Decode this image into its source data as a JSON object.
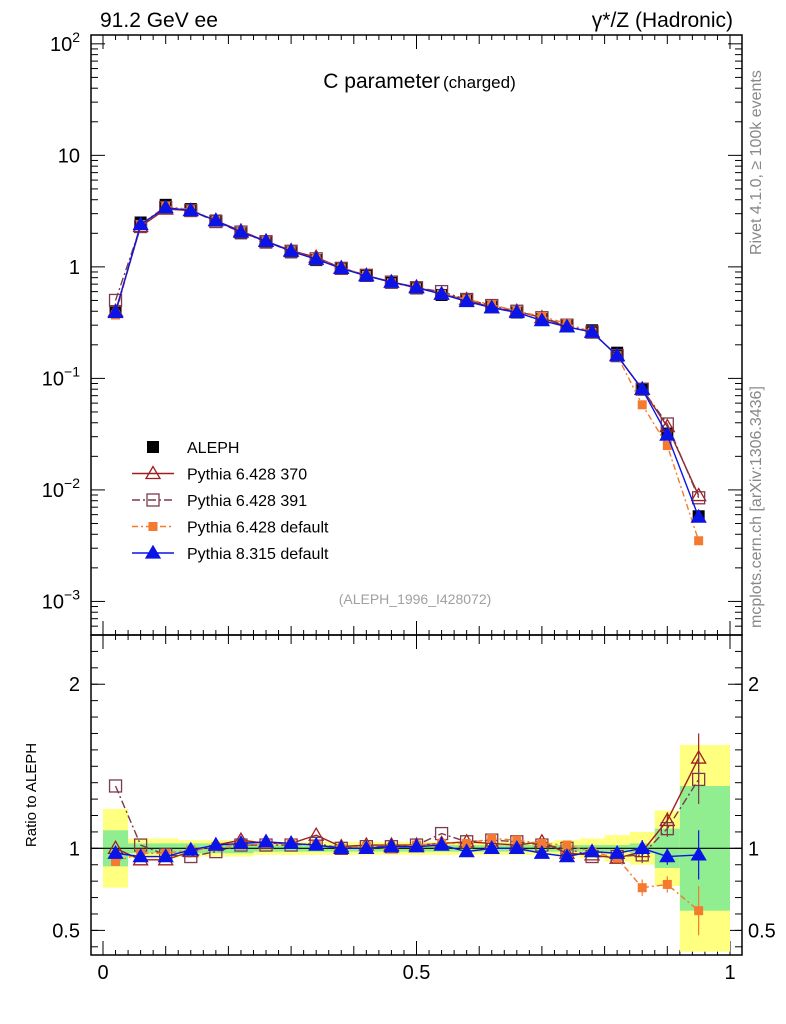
{
  "header": {
    "left_title": "91.2 GeV ee",
    "right_title": "γ*/Z (Hadronic)"
  },
  "side_labels": {
    "rivet": "Rivet 4.1.0, ≥ 100k events",
    "mcplots": "mcplots.cern.ch [arXiv:1306.3436]"
  },
  "chart_data": {
    "type": "line",
    "title_main": "C parameter",
    "title_sub": "(charged)",
    "analysis_label": "(ALEPH_1996_I428072)",
    "ratio_ylabel": "Ratio to ALEPH",
    "xlim": [
      0,
      1
    ],
    "ylim_main": [
      0.0005,
      120
    ],
    "ylim_ratio": [
      0.35,
      2.3
    ],
    "x_ticks": [
      "0",
      "0.5",
      "1"
    ],
    "y_ticks_main": [
      {
        "v": 100,
        "base": "10",
        "exp": "2"
      },
      {
        "v": 10,
        "base": "10",
        "exp": ""
      },
      {
        "v": 1,
        "base": "1",
        "exp": ""
      },
      {
        "v": 0.1,
        "base": "10",
        "exp": "−1"
      },
      {
        "v": 0.01,
        "base": "10",
        "exp": "−2"
      },
      {
        "v": 0.001,
        "base": "10",
        "exp": "−3"
      }
    ],
    "y_ticks_ratio": [
      "0.5",
      "1",
      "2"
    ],
    "x": [
      0.02,
      0.06,
      0.1,
      0.14,
      0.18,
      0.22,
      0.26,
      0.3,
      0.34,
      0.38,
      0.42,
      0.46,
      0.5,
      0.54,
      0.58,
      0.62,
      0.66,
      0.7,
      0.74,
      0.78,
      0.82,
      0.86,
      0.9,
      0.95
    ],
    "bin_edges": [
      0.0,
      0.04,
      0.08,
      0.12,
      0.16,
      0.2,
      0.24,
      0.28,
      0.32,
      0.36,
      0.4,
      0.44,
      0.48,
      0.52,
      0.56,
      0.6,
      0.64,
      0.68,
      0.72,
      0.76,
      0.8,
      0.84,
      0.88,
      0.92,
      1.0
    ],
    "band_inner": [
      0.11,
      0.03,
      0.03,
      0.03,
      0.03,
      0.03,
      0.02,
      0.02,
      0.02,
      0.02,
      0.02,
      0.02,
      0.02,
      0.02,
      0.02,
      0.02,
      0.02,
      0.02,
      0.02,
      0.02,
      0.02,
      0.03,
      0.12,
      0.38
    ],
    "band_outer": [
      0.24,
      0.06,
      0.06,
      0.05,
      0.05,
      0.05,
      0.04,
      0.04,
      0.04,
      0.04,
      0.04,
      0.04,
      0.04,
      0.04,
      0.04,
      0.04,
      0.04,
      0.04,
      0.05,
      0.06,
      0.08,
      0.1,
      0.23,
      0.63
    ],
    "data": {
      "name": "ALEPH",
      "values": [
        0.4,
        2.5,
        3.6,
        3.3,
        2.6,
        2.0,
        1.65,
        1.35,
        1.15,
        0.97,
        0.83,
        0.72,
        0.64,
        0.56,
        0.5,
        0.44,
        0.39,
        0.34,
        0.3,
        0.27,
        0.17,
        0.08,
        0.032,
        0.0058
      ]
    },
    "series": [
      {
        "name": "Pythia 6.428 370",
        "color": "#a01e1e",
        "marker": "triangle-open",
        "dash": "",
        "values": [
          0.4,
          2.3,
          3.3,
          3.2,
          2.6,
          2.1,
          1.7,
          1.4,
          1.22,
          0.98,
          0.84,
          0.73,
          0.66,
          0.57,
          0.51,
          0.43,
          0.4,
          0.35,
          0.29,
          0.26,
          0.16,
          0.08,
          0.037,
          0.0089
        ],
        "ratio": [
          1.0,
          0.93,
          0.93,
          0.98,
          1.02,
          1.05,
          1.03,
          1.03,
          1.08,
          1.01,
          1.02,
          1.02,
          1.02,
          1.03,
          1.04,
          1.03,
          1.02,
          1.04,
          0.97,
          0.96,
          0.94,
          0.98,
          1.17,
          1.55
        ]
      },
      {
        "name": "Pythia 6.428 391",
        "color": "#7a3b4a",
        "marker": "square-open",
        "dash": "8,3,2,3",
        "values": [
          0.5,
          2.3,
          3.4,
          3.2,
          2.55,
          2.05,
          1.68,
          1.38,
          1.18,
          0.97,
          0.84,
          0.73,
          0.65,
          0.6,
          0.51,
          0.45,
          0.4,
          0.35,
          0.3,
          0.26,
          0.16,
          0.08,
          0.039,
          0.0085
        ],
        "ratio": [
          1.38,
          1.02,
          0.96,
          0.95,
          0.98,
          1.02,
          1.02,
          1.02,
          1.03,
          1.0,
          1.01,
          1.01,
          1.02,
          1.09,
          1.04,
          1.05,
          1.04,
          1.02,
          1.0,
          0.95,
          0.95,
          0.96,
          1.12,
          1.42
        ]
      },
      {
        "name": "Pythia 6.428 default",
        "color": "#f47a30",
        "marker": "square-filled",
        "dash": "6,3,2,3",
        "values": [
          0.37,
          2.4,
          3.5,
          3.25,
          2.6,
          2.05,
          1.7,
          1.38,
          1.18,
          0.98,
          0.84,
          0.72,
          0.65,
          0.57,
          0.51,
          0.46,
          0.4,
          0.36,
          0.31,
          0.26,
          0.16,
          0.058,
          0.025,
          0.0035
        ],
        "ratio": [
          0.92,
          0.97,
          0.97,
          0.99,
          1.01,
          1.02,
          1.03,
          1.03,
          1.02,
          1.0,
          1.01,
          1.0,
          1.02,
          1.03,
          1.03,
          1.06,
          1.05,
          1.03,
          1.02,
          0.98,
          0.94,
          0.76,
          0.78,
          0.62
        ]
      },
      {
        "name": "Pythia 8.315 default",
        "color": "#0a14e6",
        "marker": "triangle-filled",
        "dash": "",
        "values": [
          0.39,
          2.4,
          3.4,
          3.2,
          2.6,
          2.05,
          1.7,
          1.38,
          1.17,
          0.97,
          0.83,
          0.73,
          0.65,
          0.57,
          0.49,
          0.43,
          0.39,
          0.33,
          0.29,
          0.26,
          0.16,
          0.08,
          0.031,
          0.0057
        ],
        "ratio": [
          0.97,
          0.95,
          0.95,
          0.99,
          1.02,
          1.03,
          1.04,
          1.03,
          1.02,
          1.0,
          1.0,
          1.01,
          1.01,
          1.02,
          0.98,
          1.0,
          1.0,
          0.97,
          0.95,
          0.98,
          0.97,
          1.0,
          0.95,
          0.96
        ]
      }
    ]
  }
}
